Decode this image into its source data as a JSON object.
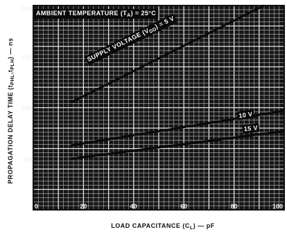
{
  "chart_data": {
    "type": "line",
    "title": "",
    "xlabel": "LOAD CAPACITANCE (C",
    "xlabel_sub": "L",
    "xlabel_tail": ") — pF",
    "ylabel": "PROPAGATION DELAY TIME (t",
    "ylabel_sub": "PHL",
    "ylabel_mid": ",t",
    "ylabel_sub2": "PLH",
    "ylabel_tail": ") — ns",
    "xlim": [
      0,
      100
    ],
    "ylim": [
      0,
      200
    ],
    "x_ticks": [
      "0",
      "20",
      "40",
      "60",
      "80",
      "100"
    ],
    "y_ticks": [
      "50",
      "100",
      "150",
      "200"
    ],
    "grid": true,
    "annotation": "AMBIENT TEMPERATURE (T",
    "annotation_sub": "A",
    "annotation_tail": ") = 25°C",
    "series": [
      {
        "name": "SUPPLY VOLTAGE (VDD) = 5 V",
        "label_parts": [
          "SUPPLY VOLTAGE (V",
          "DD",
          ") = 5 V"
        ],
        "x": [
          15,
          100
        ],
        "y": [
          105,
          210
        ]
      },
      {
        "name": "10 V",
        "label_parts": [
          "10 V",
          "",
          ""
        ],
        "x": [
          15,
          100
        ],
        "y": [
          63,
          97
        ]
      },
      {
        "name": "15 V",
        "label_parts": [
          "15 V",
          "",
          ""
        ],
        "x": [
          15,
          100
        ],
        "y": [
          50,
          77
        ]
      }
    ]
  }
}
